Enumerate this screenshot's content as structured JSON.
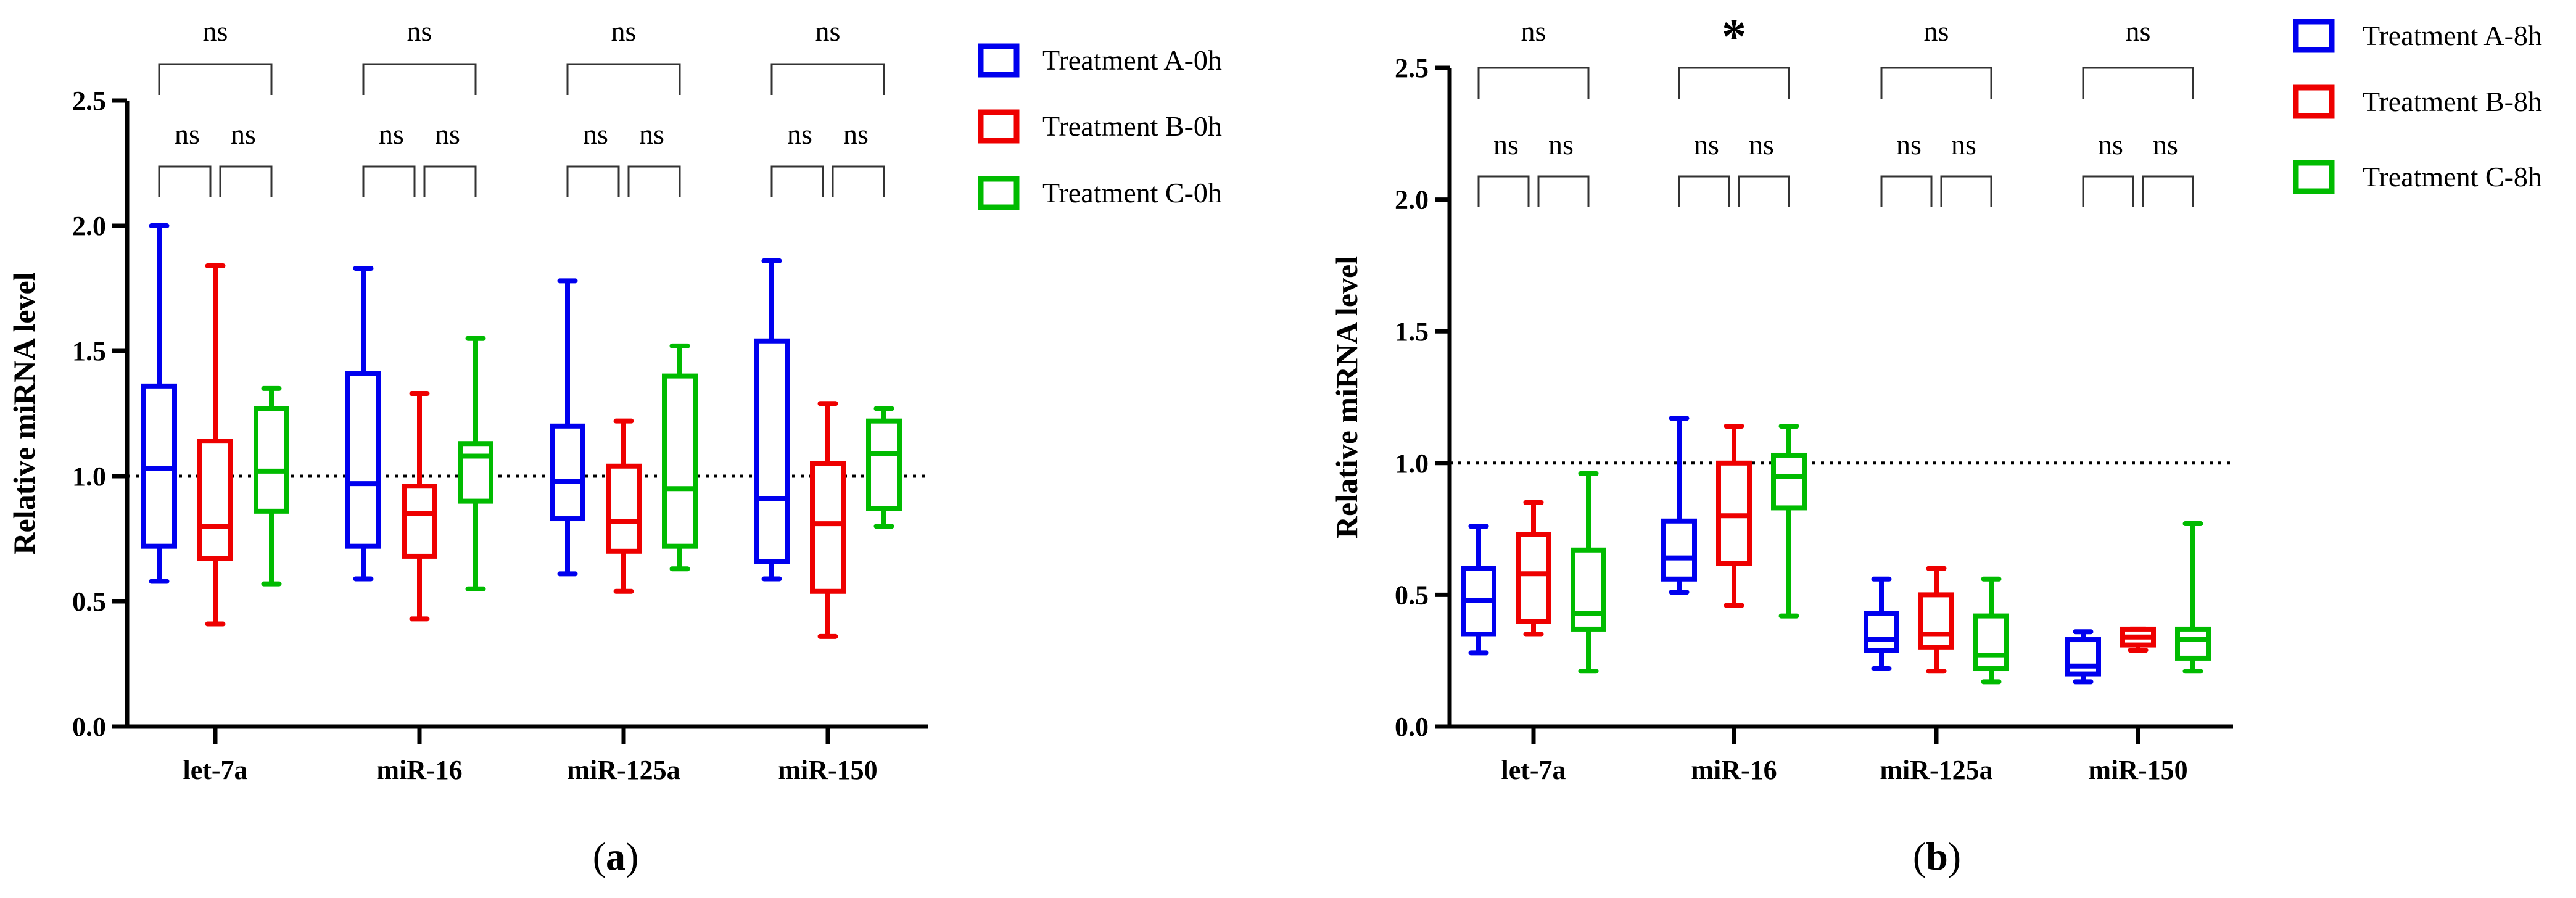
{
  "chart_data": [
    {
      "type": "boxplot",
      "panel_label": "(a)",
      "panel_letter": "a",
      "ylabel": "Relative miRNA level",
      "xlabel": "",
      "ylim": [
        0,
        2.5
      ],
      "yticks": [
        "0.0",
        "0.5",
        "1.0",
        "1.5",
        "2.0",
        "2.5"
      ],
      "reference_line": 1.0,
      "categories": [
        "let-7a",
        "miR-16",
        "miR-125a",
        "miR-150"
      ],
      "series": [
        {
          "name": "Treatment A-0h",
          "color": "#0000ee",
          "boxes": [
            {
              "min": 0.58,
              "q1": 0.72,
              "median": 1.03,
              "q3": 1.36,
              "max": 2.0
            },
            {
              "min": 0.59,
              "q1": 0.72,
              "median": 0.97,
              "q3": 1.41,
              "max": 1.83
            },
            {
              "min": 0.61,
              "q1": 0.83,
              "median": 0.98,
              "q3": 1.2,
              "max": 1.78
            },
            {
              "min": 0.59,
              "q1": 0.66,
              "median": 0.91,
              "q3": 1.54,
              "max": 1.86
            }
          ]
        },
        {
          "name": "Treatment B-0h",
          "color": "#ee0000",
          "boxes": [
            {
              "min": 0.41,
              "q1": 0.67,
              "median": 0.8,
              "q3": 1.14,
              "max": 1.84
            },
            {
              "min": 0.43,
              "q1": 0.68,
              "median": 0.85,
              "q3": 0.96,
              "max": 1.33
            },
            {
              "min": 0.54,
              "q1": 0.7,
              "median": 0.82,
              "q3": 1.04,
              "max": 1.22
            },
            {
              "min": 0.36,
              "q1": 0.54,
              "median": 0.81,
              "q3": 1.05,
              "max": 1.29
            }
          ]
        },
        {
          "name": "Treatment C-0h",
          "color": "#00bb00",
          "boxes": [
            {
              "min": 0.57,
              "q1": 0.86,
              "median": 1.02,
              "q3": 1.27,
              "max": 1.35
            },
            {
              "min": 0.55,
              "q1": 0.9,
              "median": 1.08,
              "q3": 1.13,
              "max": 1.55
            },
            {
              "min": 0.63,
              "q1": 0.72,
              "median": 0.95,
              "q3": 1.4,
              "max": 1.52
            },
            {
              "min": 0.8,
              "q1": 0.87,
              "median": 1.09,
              "q3": 1.22,
              "max": 1.27
            }
          ]
        }
      ],
      "significance": [
        {
          "overall": "ns",
          "left": "ns",
          "right": "ns"
        },
        {
          "overall": "ns",
          "left": "ns",
          "right": "ns"
        },
        {
          "overall": "ns",
          "left": "ns",
          "right": "ns"
        },
        {
          "overall": "ns",
          "left": "ns",
          "right": "ns"
        }
      ]
    },
    {
      "type": "boxplot",
      "panel_label": "(b)",
      "panel_letter": "b",
      "ylabel": "Relative miRNA level",
      "xlabel": "",
      "ylim": [
        0,
        2.5
      ],
      "yticks": [
        "0.0",
        "0.5",
        "1.0",
        "1.5",
        "2.0",
        "2.5"
      ],
      "reference_line": 1.0,
      "categories": [
        "let-7a",
        "miR-16",
        "miR-125a",
        "miR-150"
      ],
      "series": [
        {
          "name": "Treatment A-8h",
          "color": "#0000ee",
          "boxes": [
            {
              "min": 0.28,
              "q1": 0.35,
              "median": 0.48,
              "q3": 0.6,
              "max": 0.76
            },
            {
              "min": 0.51,
              "q1": 0.56,
              "median": 0.64,
              "q3": 0.78,
              "max": 1.17
            },
            {
              "min": 0.22,
              "q1": 0.29,
              "median": 0.33,
              "q3": 0.43,
              "max": 0.56
            },
            {
              "min": 0.17,
              "q1": 0.2,
              "median": 0.23,
              "q3": 0.33,
              "max": 0.36
            }
          ]
        },
        {
          "name": "Treatment B-8h",
          "color": "#ee0000",
          "boxes": [
            {
              "min": 0.35,
              "q1": 0.4,
              "median": 0.58,
              "q3": 0.73,
              "max": 0.85
            },
            {
              "min": 0.46,
              "q1": 0.62,
              "median": 0.8,
              "q3": 1.0,
              "max": 1.14
            },
            {
              "min": 0.21,
              "q1": 0.3,
              "median": 0.35,
              "q3": 0.5,
              "max": 0.6
            },
            {
              "min": 0.29,
              "q1": 0.31,
              "median": 0.34,
              "q3": 0.37,
              "max": 0.37
            }
          ]
        },
        {
          "name": "Treatment C-8h",
          "color": "#00bb00",
          "boxes": [
            {
              "min": 0.21,
              "q1": 0.37,
              "median": 0.43,
              "q3": 0.67,
              "max": 0.96
            },
            {
              "min": 0.42,
              "q1": 0.83,
              "median": 0.95,
              "q3": 1.03,
              "max": 1.14
            },
            {
              "min": 0.17,
              "q1": 0.22,
              "median": 0.27,
              "q3": 0.42,
              "max": 0.56
            },
            {
              "min": 0.21,
              "q1": 0.26,
              "median": 0.33,
              "q3": 0.37,
              "max": 0.77
            }
          ]
        }
      ],
      "significance": [
        {
          "overall": "ns",
          "left": "ns",
          "right": "ns"
        },
        {
          "overall": "*",
          "left": "ns",
          "right": "ns"
        },
        {
          "overall": "ns",
          "left": "ns",
          "right": "ns"
        },
        {
          "overall": "ns",
          "left": "ns",
          "right": "ns"
        }
      ]
    }
  ]
}
